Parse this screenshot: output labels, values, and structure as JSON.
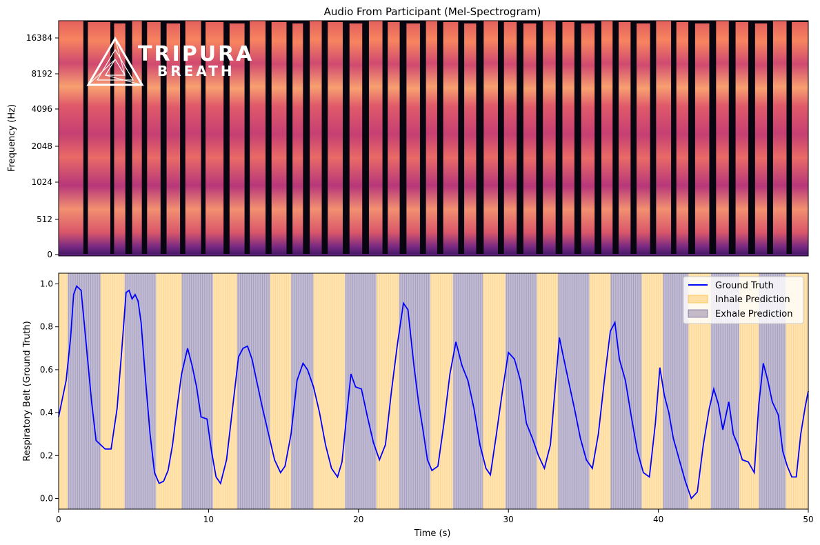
{
  "chart_data": [
    {
      "type": "heatmap",
      "title": "Audio From Participant (Mel-Spectrogram)",
      "ylabel": "Frequency (Hz)",
      "yticks": [
        "0",
        "512",
        "1024",
        "2048",
        "4096",
        "8192",
        "16384"
      ],
      "xlim": [
        0,
        50
      ],
      "colormap": "magma",
      "logo": {
        "word1": "TRIPURA",
        "word2": "BREATH",
        "color": "#ffffff"
      },
      "sound_segments": [
        [
          0.0,
          1.65
        ],
        [
          1.95,
          3.45
        ],
        [
          3.7,
          4.45
        ],
        [
          4.9,
          5.55
        ],
        [
          5.9,
          6.8
        ],
        [
          7.2,
          8.1
        ],
        [
          8.45,
          9.5
        ],
        [
          9.8,
          11.0
        ],
        [
          11.4,
          12.4
        ],
        [
          12.75,
          13.8
        ],
        [
          14.2,
          15.2
        ],
        [
          15.6,
          16.3
        ],
        [
          16.75,
          17.55
        ],
        [
          17.95,
          18.95
        ],
        [
          19.4,
          20.25
        ],
        [
          20.7,
          21.6
        ],
        [
          21.95,
          22.75
        ],
        [
          23.2,
          24.1
        ],
        [
          24.5,
          25.25
        ],
        [
          25.65,
          26.65
        ],
        [
          27.05,
          27.85
        ],
        [
          28.35,
          29.3
        ],
        [
          29.7,
          30.55
        ],
        [
          31.0,
          31.85
        ],
        [
          32.3,
          33.15
        ],
        [
          33.6,
          34.4
        ],
        [
          34.85,
          35.75
        ],
        [
          36.2,
          36.95
        ],
        [
          37.35,
          38.15
        ],
        [
          38.55,
          39.45
        ],
        [
          39.85,
          40.85
        ],
        [
          41.2,
          42.0
        ],
        [
          42.45,
          43.4
        ],
        [
          43.85,
          44.7
        ],
        [
          45.15,
          46.0
        ],
        [
          46.45,
          47.25
        ],
        [
          47.65,
          48.55
        ],
        [
          48.9,
          50.0
        ]
      ]
    },
    {
      "type": "line",
      "xlabel": "Time (s)",
      "ylabel": "Respiratory Belt (Ground Truth)",
      "xlim": [
        0,
        50
      ],
      "ylim": [
        -0.05,
        1.05
      ],
      "xticks": [
        0,
        10,
        20,
        30,
        40,
        50
      ],
      "yticks": [
        0.0,
        0.2,
        0.4,
        0.6,
        0.8,
        1.0
      ],
      "legend": {
        "position": "top-right",
        "entries": [
          {
            "label": "Ground Truth",
            "color": "#0000ff"
          },
          {
            "label": "Inhale Prediction",
            "color": "#ffa500"
          },
          {
            "label": "Exhale Prediction",
            "color": "#3a2a72"
          }
        ]
      },
      "series": [
        {
          "name": "Ground Truth",
          "color": "#0000ff",
          "x": [
            0,
            0.5,
            0.8,
            1.0,
            1.2,
            1.5,
            1.8,
            2.2,
            2.5,
            2.8,
            3.1,
            3.5,
            3.9,
            4.2,
            4.5,
            4.7,
            4.9,
            5.1,
            5.3,
            5.5,
            5.8,
            6.1,
            6.4,
            6.7,
            7.0,
            7.3,
            7.6,
            7.9,
            8.2,
            8.6,
            8.9,
            9.2,
            9.5,
            9.9,
            10.2,
            10.5,
            10.8,
            11.2,
            11.6,
            12.0,
            12.3,
            12.6,
            12.9,
            13.2,
            13.6,
            14.0,
            14.4,
            14.8,
            15.1,
            15.5,
            15.9,
            16.3,
            16.6,
            17.0,
            17.4,
            17.8,
            18.2,
            18.6,
            18.9,
            19.2,
            19.5,
            19.8,
            20.2,
            20.6,
            21.0,
            21.4,
            21.8,
            22.2,
            22.6,
            23.0,
            23.3,
            23.7,
            24.0,
            24.3,
            24.6,
            24.9,
            25.3,
            25.7,
            26.1,
            26.5,
            26.9,
            27.3,
            27.7,
            28.1,
            28.5,
            28.8,
            29.2,
            29.6,
            30.0,
            30.4,
            30.8,
            31.2,
            31.6,
            32.0,
            32.4,
            32.8,
            33.1,
            33.4,
            33.7,
            34.0,
            34.4,
            34.8,
            35.2,
            35.6,
            36.0,
            36.4,
            36.8,
            37.1,
            37.4,
            37.8,
            38.2,
            38.6,
            39.0,
            39.4,
            39.8,
            40.1,
            40.4,
            40.7,
            41.0,
            41.4,
            41.8,
            42.2,
            42.6,
            43.0,
            43.4,
            43.7,
            44.0,
            44.3,
            44.7,
            45.0,
            45.3,
            45.6,
            46.0,
            46.4,
            46.7,
            47.0,
            47.3,
            47.6,
            48.0,
            48.3,
            48.6,
            48.9,
            49.2,
            49.5,
            49.8,
            50.0
          ],
          "y": [
            0.38,
            0.55,
            0.75,
            0.95,
            0.99,
            0.97,
            0.75,
            0.45,
            0.27,
            0.25,
            0.23,
            0.23,
            0.42,
            0.68,
            0.96,
            0.97,
            0.93,
            0.95,
            0.92,
            0.82,
            0.55,
            0.3,
            0.12,
            0.07,
            0.08,
            0.13,
            0.25,
            0.42,
            0.58,
            0.7,
            0.62,
            0.52,
            0.38,
            0.37,
            0.22,
            0.1,
            0.07,
            0.18,
            0.42,
            0.66,
            0.7,
            0.71,
            0.65,
            0.55,
            0.42,
            0.3,
            0.18,
            0.12,
            0.15,
            0.3,
            0.55,
            0.63,
            0.6,
            0.52,
            0.4,
            0.25,
            0.14,
            0.1,
            0.17,
            0.38,
            0.58,
            0.52,
            0.51,
            0.38,
            0.26,
            0.18,
            0.25,
            0.5,
            0.72,
            0.91,
            0.88,
            0.62,
            0.45,
            0.32,
            0.18,
            0.13,
            0.15,
            0.35,
            0.58,
            0.73,
            0.62,
            0.55,
            0.42,
            0.25,
            0.14,
            0.11,
            0.3,
            0.5,
            0.68,
            0.65,
            0.55,
            0.35,
            0.28,
            0.2,
            0.14,
            0.25,
            0.5,
            0.75,
            0.65,
            0.55,
            0.42,
            0.28,
            0.18,
            0.14,
            0.3,
            0.55,
            0.78,
            0.82,
            0.65,
            0.55,
            0.38,
            0.22,
            0.12,
            0.1,
            0.35,
            0.61,
            0.48,
            0.4,
            0.28,
            0.18,
            0.08,
            0.0,
            0.03,
            0.25,
            0.42,
            0.51,
            0.44,
            0.32,
            0.45,
            0.3,
            0.25,
            0.18,
            0.17,
            0.12,
            0.44,
            0.63,
            0.55,
            0.45,
            0.39,
            0.22,
            0.15,
            0.1,
            0.1,
            0.3,
            0.43,
            0.5
          ]
        },
        {
          "name": "Inhale Prediction",
          "color": "#ffa500",
          "intervals": [
            [
              0.0,
              0.6
            ],
            [
              2.8,
              4.4
            ],
            [
              6.5,
              8.2
            ],
            [
              10.3,
              11.9
            ],
            [
              14.1,
              15.5
            ],
            [
              17.0,
              19.1
            ],
            [
              21.2,
              22.7
            ],
            [
              24.8,
              26.3
            ],
            [
              28.3,
              29.8
            ],
            [
              31.9,
              33.3
            ],
            [
              35.4,
              36.8
            ],
            [
              38.9,
              40.3
            ],
            [
              42.0,
              43.5
            ],
            [
              45.4,
              46.7
            ],
            [
              48.5,
              50.0
            ]
          ]
        },
        {
          "name": "Exhale Prediction",
          "color": "#3a2a72",
          "intervals": [
            [
              0.6,
              2.8
            ],
            [
              4.4,
              6.5
            ],
            [
              8.2,
              10.3
            ],
            [
              11.9,
              14.1
            ],
            [
              15.5,
              17.0
            ],
            [
              19.1,
              21.2
            ],
            [
              22.7,
              24.8
            ],
            [
              26.3,
              28.3
            ],
            [
              29.8,
              31.9
            ],
            [
              33.3,
              35.4
            ],
            [
              36.8,
              38.9
            ],
            [
              40.3,
              42.0
            ],
            [
              43.5,
              45.4
            ],
            [
              46.7,
              48.5
            ]
          ]
        }
      ]
    }
  ]
}
